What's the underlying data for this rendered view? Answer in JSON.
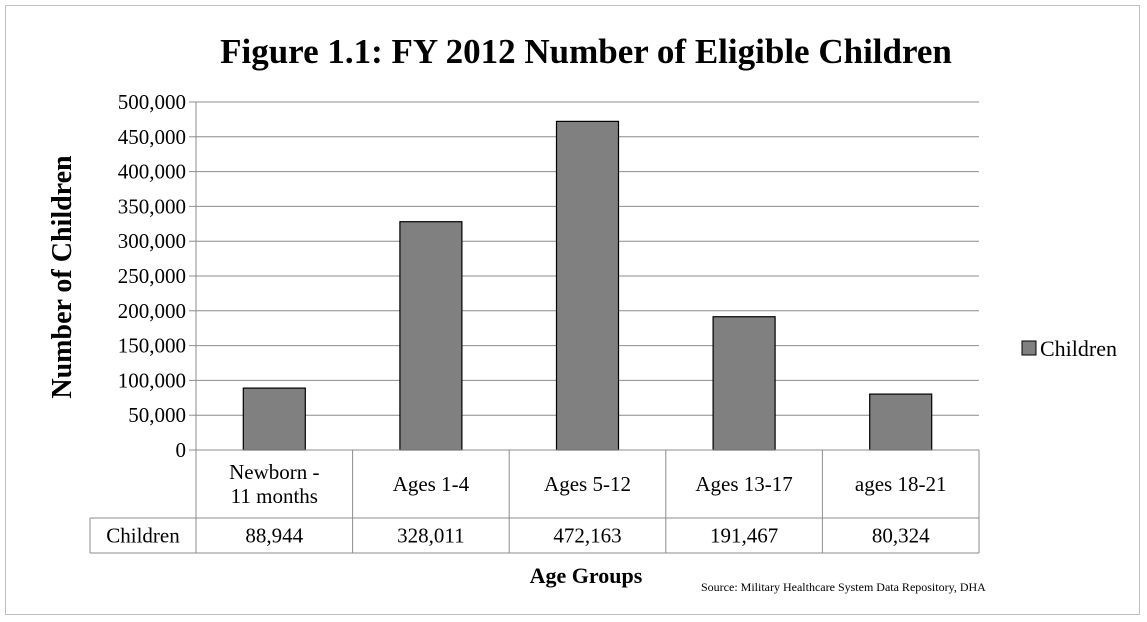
{
  "chart_data": {
    "type": "bar",
    "title": "Figure 1.1: FY 2012 Number of Eligible Children",
    "xlabel": "Age Groups",
    "ylabel": "Number of Children",
    "categories": [
      [
        "Newborn -",
        "11 months"
      ],
      [
        "Ages 1-4"
      ],
      [
        "Ages 5-12"
      ],
      [
        "Ages 13-17"
      ],
      [
        "ages 18-21"
      ]
    ],
    "series": [
      {
        "name": "Children",
        "values": [
          88944,
          328011,
          472163,
          191467,
          80324
        ],
        "color": "#808080"
      }
    ],
    "data_table": {
      "row_label": "Children",
      "cells": [
        "88,944",
        "328,011",
        "472,163",
        "191,467",
        "80,324"
      ]
    },
    "yticks": [
      "0",
      "50,000",
      "100,000",
      "150,000",
      "200,000",
      "250,000",
      "300,000",
      "350,000",
      "400,000",
      "450,000",
      "500,000"
    ],
    "ylim": [
      0,
      500000
    ],
    "grid": true,
    "legend_position": "right",
    "source": "Source: Military Healthcare System Data Repository, DHA"
  }
}
